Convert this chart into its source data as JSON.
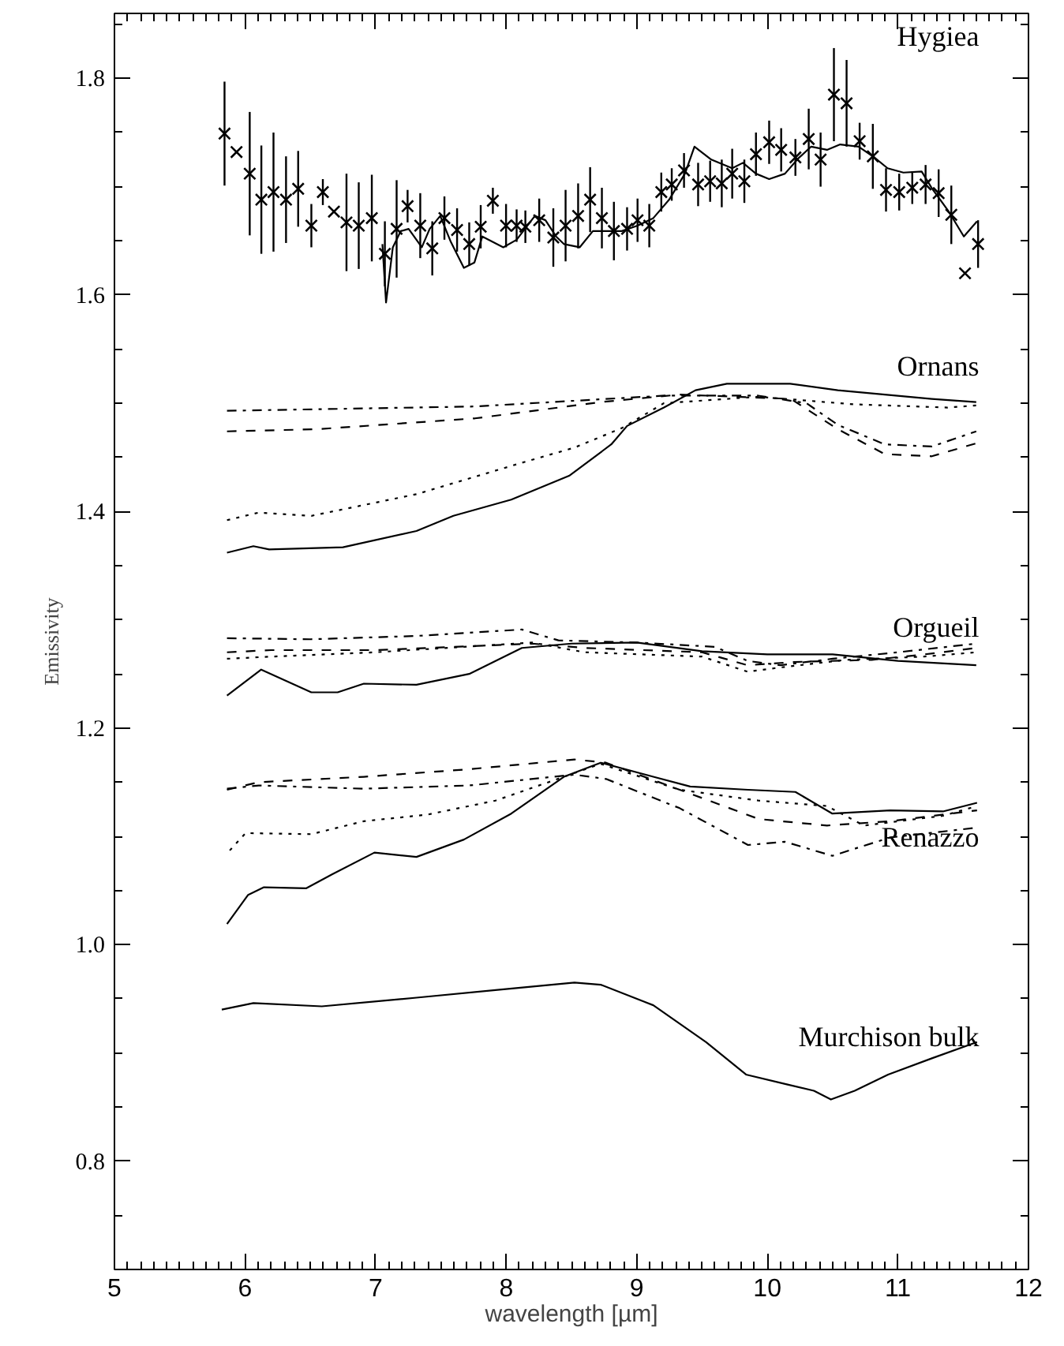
{
  "chart_data": {
    "type": "line",
    "xlabel": "wavelength [µm]",
    "ylabel": "Emissivity",
    "xlim": [
      5,
      12
    ],
    "ylim": [
      0.7,
      1.86
    ],
    "xticks": [
      5,
      6,
      7,
      8,
      9,
      10,
      11,
      12
    ],
    "yticks": [
      {
        "value": 0.8,
        "label": "0.8"
      },
      {
        "value": 1.0,
        "label": "1.0"
      },
      {
        "value": 1.2,
        "label": "1.2"
      },
      {
        "value": 1.4,
        "label": "1.4"
      },
      {
        "value": 1.6,
        "label": "1.6"
      },
      {
        "value": 1.8,
        "label": "1.8"
      }
    ],
    "annotations": [
      "Hygiea",
      "Ornans",
      "Orgueil",
      "Renazzo",
      "Murchison bulk"
    ],
    "series": [
      {
        "type": "scatter",
        "marker": "cross",
        "color": "#000000",
        "x": [
          5.843,
          5.935,
          6.036,
          6.125,
          6.218,
          6.314,
          6.407,
          6.508,
          6.596,
          6.681,
          6.777,
          6.871,
          6.971,
          7.071,
          7.161,
          7.245,
          7.342,
          7.434,
          7.527,
          7.624,
          7.717,
          7.805,
          7.898,
          7.999,
          8.08,
          8.147,
          8.253,
          8.361,
          8.455,
          8.551,
          8.643,
          8.733,
          8.825,
          8.926,
          9.006,
          9.096,
          9.188,
          9.268,
          9.362,
          9.47,
          9.562,
          9.651,
          9.731,
          9.824,
          9.913,
          10.014,
          10.106,
          10.215,
          10.317,
          10.408,
          10.51,
          10.607,
          10.707,
          10.808,
          10.909,
          11.01,
          11.11,
          11.212,
          11.312,
          11.409,
          11.514,
          11.614
        ],
        "values": [
          1.749,
          1.732,
          1.712,
          1.688,
          1.695,
          1.688,
          1.698,
          1.664,
          1.695,
          1.677,
          1.667,
          1.664,
          1.671,
          1.638,
          1.661,
          1.682,
          1.664,
          1.643,
          1.671,
          1.66,
          1.647,
          1.663,
          1.687,
          1.664,
          1.664,
          1.663,
          1.669,
          1.653,
          1.664,
          1.673,
          1.688,
          1.671,
          1.659,
          1.661,
          1.669,
          1.664,
          1.695,
          1.702,
          1.715,
          1.702,
          1.705,
          1.703,
          1.712,
          1.705,
          1.73,
          1.741,
          1.734,
          1.727,
          1.744,
          1.725,
          1.785,
          1.777,
          1.742,
          1.728,
          1.697,
          1.695,
          1.699,
          1.702,
          1.694,
          1.674,
          1.62,
          1.647
        ],
        "errors": [
          0.048,
          null,
          0.057,
          0.05,
          0.055,
          0.04,
          0.035,
          0.02,
          0.012,
          null,
          0.045,
          0.04,
          0.04,
          0.03,
          0.045,
          0.015,
          0.03,
          0.025,
          0.02,
          0.02,
          0.02,
          0.02,
          0.012,
          0.02,
          0.015,
          0.015,
          0.02,
          0.027,
          0.033,
          0.03,
          0.03,
          0.028,
          0.027,
          0.02,
          0.02,
          0.02,
          0.018,
          0.015,
          0.016,
          0.02,
          0.019,
          0.022,
          0.023,
          0.02,
          0.02,
          0.02,
          0.02,
          0.017,
          0.028,
          0.025,
          0.043,
          0.04,
          0.017,
          0.03,
          0.02,
          0.017,
          0.015,
          0.018,
          0.022,
          0.027,
          null,
          0.022
        ]
      },
      {
        "line_style": "solid",
        "color": "#000000",
        "x": [
          7.052,
          7.08,
          7.132,
          7.193,
          7.253,
          7.354,
          7.414,
          7.495,
          7.576,
          7.676,
          7.757,
          7.817,
          7.978,
          8.08,
          8.22,
          8.301,
          8.382,
          8.442,
          8.563,
          8.664,
          8.885,
          9.006,
          9.127,
          9.248,
          9.369,
          9.442,
          9.571,
          9.731,
          9.813,
          9.913,
          10.014,
          10.135,
          10.236,
          10.336,
          10.457,
          10.558,
          10.699,
          10.82,
          10.921,
          11.042,
          11.182,
          11.263,
          11.384,
          11.505,
          11.606
        ],
        "values": [
          1.647,
          1.593,
          1.644,
          1.659,
          1.661,
          1.644,
          1.661,
          1.673,
          1.649,
          1.625,
          1.63,
          1.654,
          1.644,
          1.651,
          1.673,
          1.669,
          1.654,
          1.647,
          1.644,
          1.659,
          1.659,
          1.664,
          1.671,
          1.688,
          1.712,
          1.737,
          1.725,
          1.717,
          1.722,
          1.712,
          1.707,
          1.712,
          1.726,
          1.737,
          1.734,
          1.739,
          1.737,
          1.727,
          1.717,
          1.713,
          1.714,
          1.698,
          1.678,
          1.654,
          1.668
        ]
      },
      {
        "line_style": "solid",
        "color": "#000000",
        "x": [
          5.862,
          6.064,
          6.185,
          6.75,
          7.313,
          7.596,
          8.039,
          8.482,
          8.805,
          8.926,
          9.208,
          9.45,
          9.69,
          10.175,
          10.54,
          10.9,
          11.26,
          11.6
        ],
        "values": [
          1.362,
          1.368,
          1.365,
          1.367,
          1.382,
          1.396,
          1.411,
          1.433,
          1.462,
          1.479,
          1.496,
          1.512,
          1.518,
          1.518,
          1.512,
          1.508,
          1.504,
          1.501
        ]
      },
      {
        "line_style": "dotted",
        "color": "#000000",
        "x": [
          5.862,
          6.104,
          6.508,
          7.313,
          8.12,
          8.523,
          8.885,
          9.208,
          9.93,
          10.66,
          11.38,
          11.6
        ],
        "values": [
          1.392,
          1.399,
          1.396,
          1.416,
          1.445,
          1.459,
          1.477,
          1.5,
          1.506,
          1.499,
          1.496,
          1.498
        ]
      },
      {
        "line_style": "dashed",
        "color": "#000000",
        "x": [
          5.862,
          6.55,
          7.76,
          8.72,
          9.33,
          10.18,
          10.54,
          10.9,
          11.26,
          11.6
        ],
        "values": [
          1.474,
          1.476,
          1.486,
          1.501,
          1.508,
          1.504,
          1.476,
          1.453,
          1.451,
          1.463
        ]
      },
      {
        "line_style": "dashdot",
        "color": "#000000",
        "x": [
          5.862,
          7.76,
          9.21,
          9.93,
          10.3,
          10.54,
          10.9,
          11.26,
          11.6
        ],
        "values": [
          1.493,
          1.497,
          1.507,
          1.507,
          1.5,
          1.48,
          1.462,
          1.46,
          1.474
        ]
      },
      {
        "line_style": "solid",
        "color": "#000000",
        "x": [
          5.862,
          6.124,
          6.508,
          6.709,
          6.91,
          7.313,
          7.717,
          8.12,
          8.5,
          9.0,
          9.5,
          10.0,
          10.5,
          11.0,
          11.6
        ],
        "values": [
          1.23,
          1.254,
          1.233,
          1.233,
          1.241,
          1.24,
          1.25,
          1.274,
          1.278,
          1.279,
          1.271,
          1.268,
          1.268,
          1.262,
          1.258
        ]
      },
      {
        "line_style": "dotted",
        "color": "#000000",
        "x": [
          5.862,
          6.2,
          7.0,
          8.2,
          8.6,
          9.5,
          9.85,
          10.1,
          10.6,
          11.2,
          11.6
        ],
        "values": [
          1.264,
          1.266,
          1.27,
          1.279,
          1.27,
          1.266,
          1.252,
          1.256,
          1.263,
          1.266,
          1.27
        ]
      },
      {
        "line_style": "dashed",
        "color": "#000000",
        "x": [
          5.862,
          6.2,
          7.0,
          8.2,
          8.6,
          9.5,
          9.85,
          10.2,
          10.8,
          11.2,
          11.6
        ],
        "values": [
          1.27,
          1.272,
          1.272,
          1.278,
          1.274,
          1.27,
          1.258,
          1.261,
          1.263,
          1.268,
          1.274
        ]
      },
      {
        "line_style": "dashdot",
        "color": "#000000",
        "x": [
          5.862,
          6.5,
          7.3,
          8.12,
          8.4,
          9.0,
          9.6,
          9.85,
          10.1,
          10.5,
          11.0,
          11.6
        ],
        "values": [
          1.283,
          1.282,
          1.285,
          1.291,
          1.281,
          1.279,
          1.275,
          1.262,
          1.258,
          1.264,
          1.27,
          1.278
        ]
      },
      {
        "line_style": "solid",
        "color": "#000000",
        "x": [
          5.862,
          6.024,
          6.145,
          6.467,
          6.669,
          6.991,
          7.313,
          7.676,
          8.039,
          8.442,
          8.724,
          9.127,
          9.409,
          9.852,
          10.215,
          10.498,
          10.941,
          11.345,
          11.606
        ],
        "values": [
          1.019,
          1.046,
          1.053,
          1.052,
          1.065,
          1.085,
          1.081,
          1.097,
          1.121,
          1.155,
          1.168,
          1.155,
          1.146,
          1.143,
          1.141,
          1.121,
          1.124,
          1.123,
          1.131
        ]
      },
      {
        "line_style": "dotted",
        "color": "#000000",
        "x": [
          5.883,
          6.004,
          6.508,
          6.91,
          7.394,
          7.918,
          8.442,
          8.724,
          9.329,
          9.934,
          10.457,
          10.74,
          11.345,
          11.606
        ],
        "values": [
          1.087,
          1.103,
          1.102,
          1.114,
          1.12,
          1.133,
          1.155,
          1.167,
          1.143,
          1.133,
          1.128,
          1.11,
          1.119,
          1.128
        ]
      },
      {
        "line_style": "dashed",
        "color": "#000000",
        "x": [
          5.862,
          6.104,
          6.91,
          7.717,
          8.523,
          8.765,
          9.329,
          9.934,
          10.457,
          10.941,
          11.606
        ],
        "values": [
          1.143,
          1.15,
          1.155,
          1.162,
          1.171,
          1.168,
          1.143,
          1.116,
          1.11,
          1.114,
          1.124
        ]
      },
      {
        "line_style": "dashdot",
        "color": "#000000",
        "x": [
          5.862,
          6.104,
          6.91,
          7.717,
          8.523,
          8.765,
          9.329,
          9.852,
          10.135,
          10.498,
          10.941,
          11.606
        ],
        "values": [
          1.144,
          1.147,
          1.144,
          1.147,
          1.157,
          1.153,
          1.126,
          1.092,
          1.095,
          1.082,
          1.099,
          1.108
        ]
      },
      {
        "line_style": "solid",
        "color": "#000000",
        "x": [
          5.822,
          6.064,
          6.588,
          7.313,
          7.918,
          8.523,
          8.724,
          9.127,
          9.531,
          9.837,
          10.149,
          10.357,
          10.487,
          10.669,
          10.925,
          11.26,
          11.606
        ],
        "values": [
          0.94,
          0.946,
          0.943,
          0.951,
          0.958,
          0.965,
          0.963,
          0.944,
          0.91,
          0.88,
          0.871,
          0.865,
          0.857,
          0.865,
          0.88,
          0.895,
          0.91
        ]
      }
    ]
  }
}
